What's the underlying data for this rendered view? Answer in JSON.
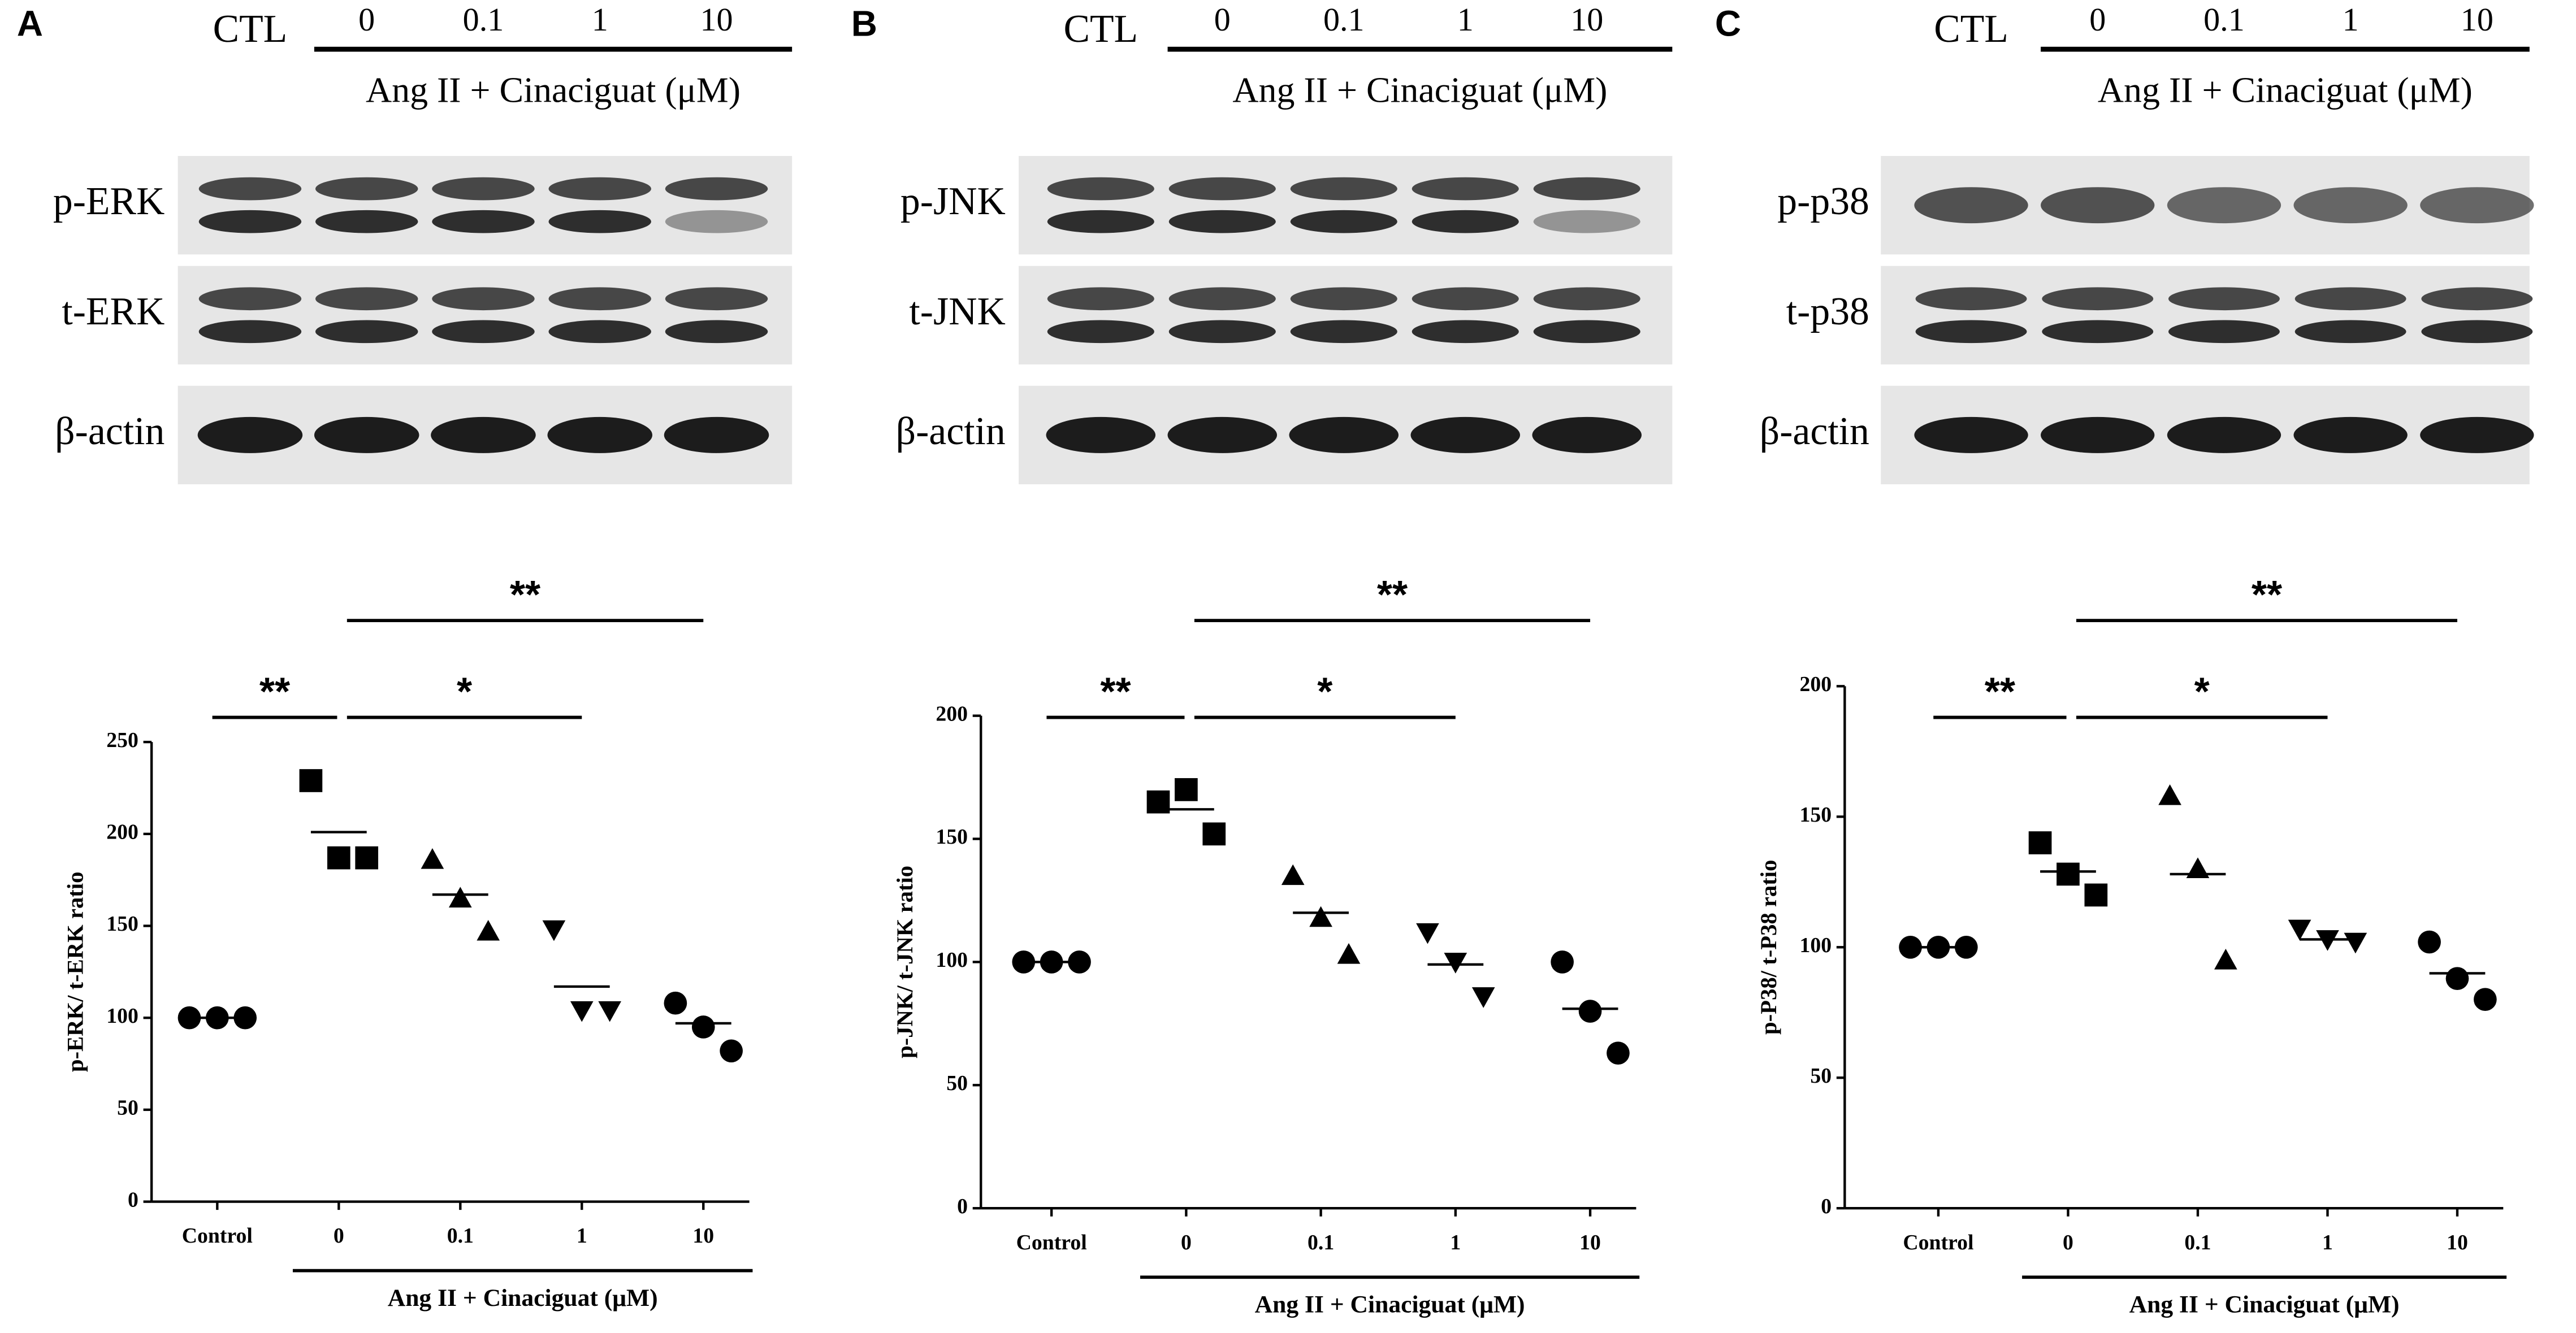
{
  "chart_data": [
    {
      "type": "scatter",
      "panel": "A",
      "blot": {
        "lanes": [
          "CTL",
          "0",
          "0.1",
          "1",
          "10"
        ],
        "lane_group": "Ang II + Cinaciguat (μM)",
        "rows": [
          "p-ERK",
          "t-ERK",
          "β-actin"
        ]
      },
      "ylabel": "p-ERK/ t-ERK ratio",
      "categories": [
        "Control",
        "0",
        "0.1",
        "1",
        "10"
      ],
      "group_label": "Ang II + Cinaciguat (μM)",
      "ylim": [
        0,
        250
      ],
      "yticks": [
        0,
        50,
        100,
        150,
        200,
        250
      ],
      "markers": [
        "circle",
        "square",
        "triangle",
        "triangle-down",
        "circle"
      ],
      "color": "#000000",
      "points": [
        [
          100,
          100,
          100
        ],
        [
          229,
          187,
          187
        ],
        [
          186,
          165,
          147
        ],
        [
          148,
          104,
          104
        ],
        [
          108,
          95,
          82
        ]
      ],
      "means": [
        100,
        201,
        167,
        117,
        97
      ],
      "annotations": [
        {
          "text": "**",
          "from": 0,
          "to": 1
        },
        {
          "text": "*",
          "from": 1,
          "to": 3
        },
        {
          "text": "**",
          "from": 1,
          "to": 4
        }
      ]
    },
    {
      "type": "scatter",
      "panel": "B",
      "blot": {
        "lanes": [
          "CTL",
          "0",
          "0.1",
          "1",
          "10"
        ],
        "lane_group": "Ang II + Cinaciguat (μM)",
        "rows": [
          "p-JNK",
          "t-JNK",
          "β-actin"
        ]
      },
      "ylabel": "p-JNK/ t-JNK ratio",
      "categories": [
        "Control",
        "0",
        "0.1",
        "1",
        "10"
      ],
      "group_label": "Ang II + Cinaciguat (μM)",
      "ylim": [
        0,
        200
      ],
      "yticks": [
        0,
        50,
        100,
        150,
        200
      ],
      "markers": [
        "circle",
        "square",
        "triangle",
        "triangle-down",
        "circle"
      ],
      "color": "#000000",
      "points": [
        [
          100,
          100,
          100
        ],
        [
          165,
          170,
          152
        ],
        [
          135,
          118,
          103
        ],
        [
          112,
          100,
          86
        ],
        [
          100,
          80,
          63
        ]
      ],
      "means": [
        100,
        162,
        120,
        99,
        81
      ],
      "annotations": [
        {
          "text": "**",
          "from": 0,
          "to": 1
        },
        {
          "text": "*",
          "from": 1,
          "to": 3
        },
        {
          "text": "**",
          "from": 1,
          "to": 4
        }
      ]
    },
    {
      "type": "scatter",
      "panel": "C",
      "blot": {
        "lanes": [
          "CTL",
          "0",
          "0.1",
          "1",
          "10"
        ],
        "lane_group": "Ang II + Cinaciguat (μM)",
        "rows": [
          "p-p38",
          "t-p38",
          "β-actin"
        ]
      },
      "ylabel": "p-P38/ t-P38 ratio",
      "categories": [
        "Control",
        "0",
        "0.1",
        "1",
        "10"
      ],
      "group_label": "Ang II + Cinaciguat (μM)",
      "ylim": [
        0,
        200
      ],
      "yticks": [
        0,
        50,
        100,
        150,
        200
      ],
      "markers": [
        "circle",
        "square",
        "triangle",
        "triangle-down",
        "circle"
      ],
      "color": "#000000",
      "points": [
        [
          100,
          100,
          100
        ],
        [
          140,
          128,
          120
        ],
        [
          158,
          130,
          95
        ],
        [
          107,
          103,
          102
        ],
        [
          102,
          88,
          80
        ]
      ],
      "means": [
        100,
        129,
        128,
        103,
        90
      ],
      "annotations": [
        {
          "text": "**",
          "from": 0,
          "to": 1
        },
        {
          "text": "*",
          "from": 1,
          "to": 3
        },
        {
          "text": "**",
          "from": 1,
          "to": 4
        }
      ]
    }
  ]
}
